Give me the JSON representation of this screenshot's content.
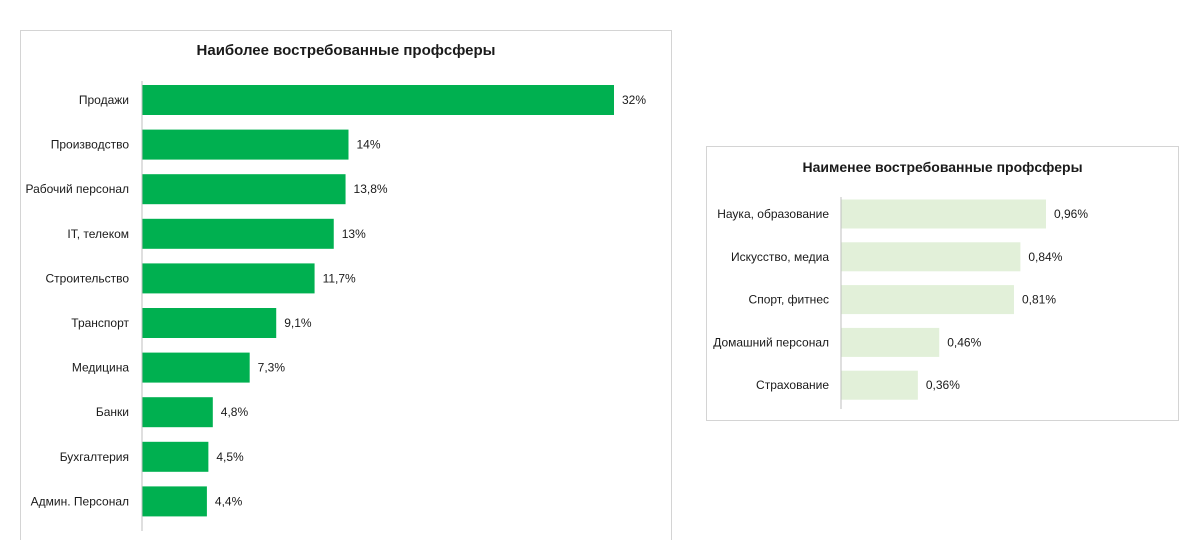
{
  "chart_data": [
    {
      "type": "bar",
      "orientation": "horizontal",
      "title": "Наиболее востребованные профсферы",
      "categories": [
        "Продажи",
        "Производство",
        "Рабочий персонал",
        "IT, телеком",
        "Строительство",
        "Транспорт",
        "Медицина",
        "Банки",
        "Бухгалтерия",
        "Админ. Персонал"
      ],
      "values": [
        32,
        14,
        13.8,
        13,
        11.7,
        9.1,
        7.3,
        4.8,
        4.5,
        4.4
      ],
      "value_labels": [
        "32%",
        "14%",
        "13,8%",
        "13%",
        "11,7%",
        "9,1%",
        "7,3%",
        "4,8%",
        "4,5%",
        "4,4%"
      ],
      "xlim": [
        0,
        32
      ],
      "bar_color": "#00b050",
      "grid": false,
      "legend": "none"
    },
    {
      "type": "bar",
      "orientation": "horizontal",
      "title": "Наименее востребованные профсферы",
      "categories": [
        "Наука, образование",
        "Искусство, медиа",
        "Спорт, фитнес",
        "Домашний персонал",
        "Страхование"
      ],
      "values": [
        0.96,
        0.84,
        0.81,
        0.46,
        0.36
      ],
      "value_labels": [
        "0,96%",
        "0,84%",
        "0,81%",
        "0,46%",
        "0,36%"
      ],
      "xlim": [
        0,
        0.96
      ],
      "bar_color": "#e2f0d9",
      "grid": false,
      "legend": "none"
    }
  ]
}
